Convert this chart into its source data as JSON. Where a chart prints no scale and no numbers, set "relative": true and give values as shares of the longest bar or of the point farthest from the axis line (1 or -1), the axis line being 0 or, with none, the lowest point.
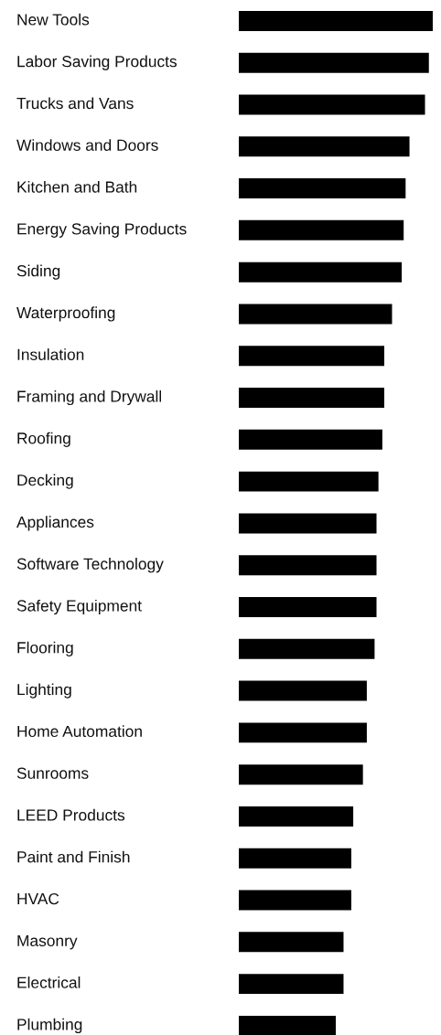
{
  "chart_data": {
    "type": "bar",
    "orientation": "horizontal",
    "relative": true,
    "color": "#000000",
    "categories": [
      "New Tools",
      "Labor Saving Products",
      "Trucks and Vans",
      "Windows and Doors",
      "Kitchen and Bath",
      "Energy Saving Products",
      "Siding",
      "Waterproofing",
      "Insulation",
      "Framing and Drywall",
      "Roofing",
      "Decking",
      "Appliances",
      "Software Technology",
      "Safety Equipment",
      "Flooring",
      "Lighting",
      "Home Automation",
      "Sunrooms",
      "LEED Products",
      "Paint and Finish",
      "HVAC",
      "Masonry",
      "Electrical",
      "Plumbing"
    ],
    "values": [
      1,
      0.98,
      0.96,
      0.88,
      0.86,
      0.85,
      0.84,
      0.79,
      0.75,
      0.75,
      0.74,
      0.72,
      0.71,
      0.71,
      0.71,
      0.7,
      0.66,
      0.66,
      0.64,
      0.59,
      0.58,
      0.58,
      0.54,
      0.54,
      0.5
    ]
  }
}
